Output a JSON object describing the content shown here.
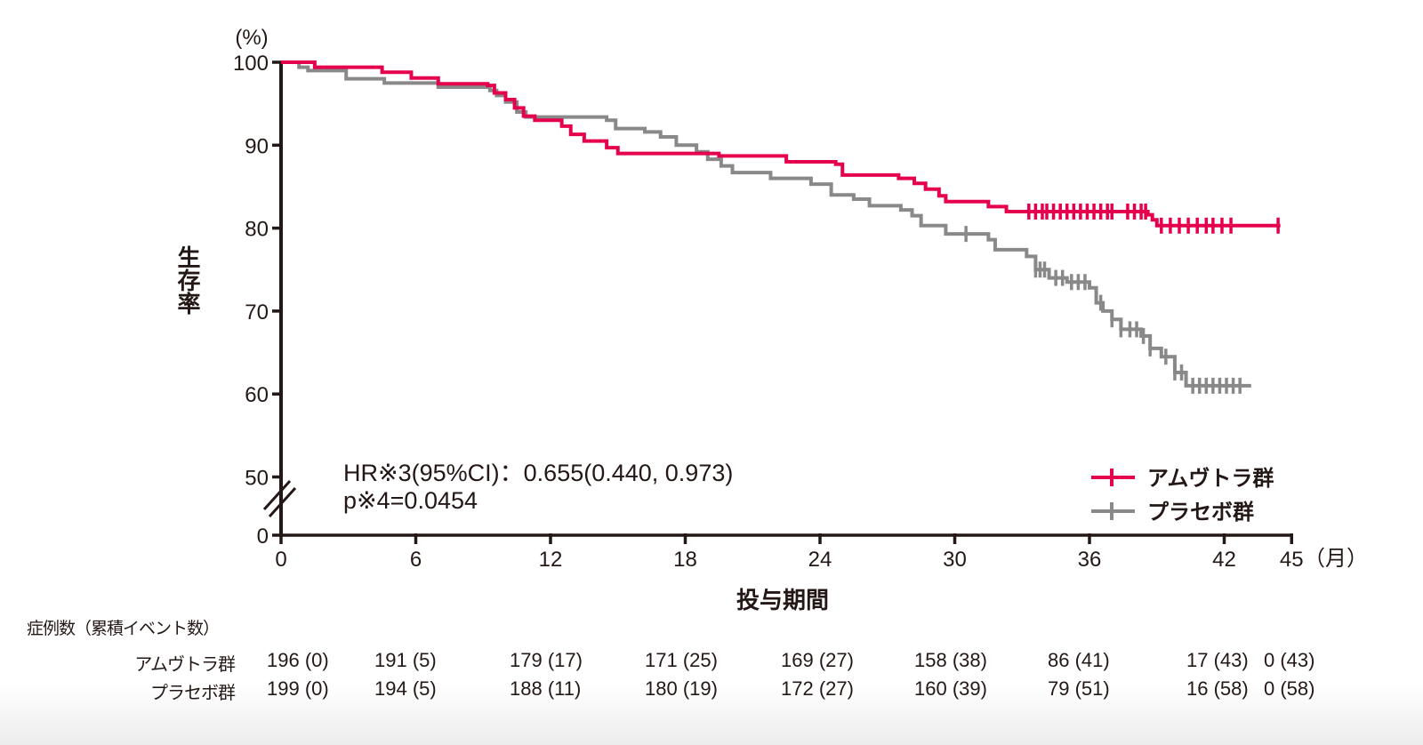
{
  "chart_data": {
    "type": "line",
    "subtype": "kaplan-meier",
    "title": "",
    "xlabel": "投与期間",
    "x_unit": "（月）",
    "ylabel": "生存率",
    "y_unit": "(%)",
    "xlim": [
      0,
      45
    ],
    "ylim": [
      50,
      100
    ],
    "y_axis_break": true,
    "x_ticks": [
      0,
      6,
      12,
      18,
      24,
      30,
      36,
      42,
      45
    ],
    "y_ticks": [
      0,
      50,
      60,
      70,
      80,
      90,
      100
    ],
    "grid": false,
    "legend_position": "lower right",
    "annotations": {
      "hr_line": "HR※3(95%CI)：0.655(0.440, 0.973)",
      "p_line": "p※4=0.0454"
    },
    "series": [
      {
        "name": "アムヴトラ群",
        "color": "#E5004F",
        "censor_marker": "+",
        "points": [
          [
            0,
            100
          ],
          [
            1.5,
            99.4
          ],
          [
            4.5,
            98.8
          ],
          [
            5.8,
            98.1
          ],
          [
            7,
            97.4
          ],
          [
            9.2,
            97.2
          ],
          [
            9.5,
            96.3
          ],
          [
            10,
            95.5
          ],
          [
            10.4,
            94.5
          ],
          [
            10.8,
            93.5
          ],
          [
            11.3,
            93.0
          ],
          [
            12.5,
            92.3
          ],
          [
            12.9,
            91.3
          ],
          [
            13.5,
            90.5
          ],
          [
            14.5,
            89.7
          ],
          [
            15,
            89.0
          ],
          [
            19.5,
            88.7
          ],
          [
            22.5,
            88.0
          ],
          [
            24.7,
            87.7
          ],
          [
            25,
            86.4
          ],
          [
            27.5,
            86.0
          ],
          [
            28.2,
            85.4
          ],
          [
            28.7,
            84.7
          ],
          [
            29.3,
            83.9
          ],
          [
            29.6,
            83.2
          ],
          [
            31.5,
            82.6
          ],
          [
            32.3,
            82.0
          ],
          [
            38.6,
            81.6
          ],
          [
            38.8,
            81.0
          ],
          [
            39,
            80.3
          ],
          [
            44.5,
            80.3
          ]
        ],
        "censor_times": [
          33.3,
          33.6,
          33.9,
          34.1,
          34.4,
          34.7,
          35.0,
          35.3,
          35.6,
          35.9,
          36.2,
          36.5,
          36.8,
          37.0,
          37.7,
          38.0,
          38.3,
          38.5,
          39.2,
          39.6,
          40.0,
          40.4,
          40.8,
          41.2,
          41.5,
          41.9,
          42.3,
          44.4
        ]
      },
      {
        "name": "プラセボ群",
        "color": "#898989",
        "censor_marker": "+",
        "points": [
          [
            0,
            100
          ],
          [
            0.8,
            99.4
          ],
          [
            1.2,
            99.0
          ],
          [
            2.9,
            98.0
          ],
          [
            4.6,
            97.5
          ],
          [
            7,
            97.0
          ],
          [
            9.3,
            96.6
          ],
          [
            9.6,
            96.0
          ],
          [
            10,
            95.2
          ],
          [
            10.5,
            94.0
          ],
          [
            10.9,
            93.4
          ],
          [
            14.5,
            93.0
          ],
          [
            14.9,
            92.0
          ],
          [
            16.2,
            91.6
          ],
          [
            16.9,
            91.0
          ],
          [
            17.6,
            90.0
          ],
          [
            18.5,
            89.2
          ],
          [
            19,
            88.3
          ],
          [
            19.6,
            87.5
          ],
          [
            20.1,
            86.7
          ],
          [
            21.8,
            86.0
          ],
          [
            23.6,
            85.3
          ],
          [
            24.5,
            84.0
          ],
          [
            25.5,
            83.5
          ],
          [
            26.2,
            82.7
          ],
          [
            27.6,
            82.2
          ],
          [
            28.1,
            81.5
          ],
          [
            28.5,
            80.3
          ],
          [
            29.6,
            79.3
          ],
          [
            31.5,
            78.6
          ],
          [
            31.8,
            77.4
          ],
          [
            33.2,
            76.6
          ],
          [
            33.6,
            75.0
          ],
          [
            34.2,
            74.0
          ],
          [
            35,
            73.5
          ],
          [
            36,
            72.8
          ],
          [
            36.3,
            71.0
          ],
          [
            36.6,
            70.0
          ],
          [
            37,
            69.0
          ],
          [
            37.4,
            67.8
          ],
          [
            38.3,
            67.0
          ],
          [
            38.7,
            65.5
          ],
          [
            39.2,
            64.5
          ],
          [
            39.8,
            62.6
          ],
          [
            40.3,
            61.0
          ],
          [
            43.2,
            61.0
          ]
        ],
        "censor_times": [
          30.5,
          33.6,
          33.8,
          34.0,
          34.5,
          34.8,
          35.2,
          35.5,
          35.8,
          36.5,
          37.0,
          37.4,
          37.8,
          38.1,
          38.4,
          38.7,
          39.4,
          39.8,
          40.1,
          40.6,
          40.9,
          41.2,
          41.5,
          41.8,
          42.1,
          42.4,
          42.7
        ]
      }
    ],
    "risk_table": {
      "title": "症例数（累積イベント数）",
      "times": [
        0,
        6,
        12,
        18,
        24,
        30,
        36,
        42,
        45
      ],
      "rows": [
        {
          "group": "アムヴトラ群",
          "cells": [
            "196 (0)",
            "191 (5)",
            "179 (17)",
            "171 (25)",
            "169 (27)",
            "158 (38)",
            "86 (41)",
            "17 (43)",
            "0 (43)"
          ]
        },
        {
          "group": "プラセボ群",
          "cells": [
            "199 (0)",
            "194 (5)",
            "188 (11)",
            "180 (19)",
            "172 (27)",
            "160 (39)",
            "79 (51)",
            "16 (58)",
            "0 (58)"
          ]
        }
      ]
    }
  }
}
